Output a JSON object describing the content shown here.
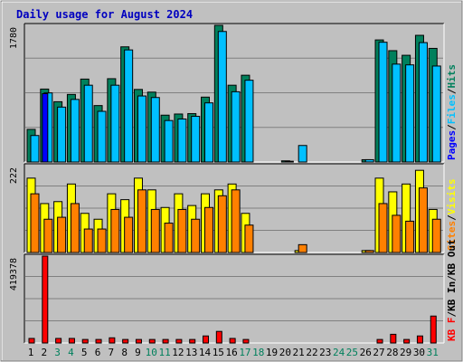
{
  "chart_data": {
    "type": "bar",
    "title": "Daily usage for August 2024",
    "categories": [
      "1",
      "2",
      "3",
      "4",
      "5",
      "6",
      "7",
      "8",
      "9",
      "10",
      "11",
      "12",
      "13",
      "14",
      "15",
      "16",
      "17",
      "18",
      "19",
      "20",
      "21",
      "22",
      "23",
      "24",
      "25",
      "26",
      "27",
      "28",
      "29",
      "30",
      "31"
    ],
    "weekend_days": [
      "3",
      "4",
      "10",
      "11",
      "17",
      "18",
      "24",
      "25",
      "31"
    ],
    "panels": [
      {
        "name": "hits-files-pages",
        "ymax": 1780,
        "ymax_label": "1780",
        "legend": [
          "Pages",
          "Files",
          "Hits"
        ],
        "series": [
          {
            "name": "Hits",
            "color": "#00805c",
            "values": [
              425,
              950,
              785,
              880,
              1080,
              735,
              1085,
              1500,
              945,
              910,
              610,
              625,
              630,
              845,
              1780,
              1000,
              1130,
              0,
              0,
              15,
              0,
              0,
              0,
              0,
              0,
              30,
              1590,
              1450,
              1390,
              1650,
              1480
            ]
          },
          {
            "name": "Files",
            "color": "#00c0ff",
            "values": [
              345,
              900,
              715,
              815,
              1000,
              660,
              1000,
              1460,
              860,
              840,
              540,
              560,
              595,
              770,
              1700,
              915,
              1065,
              0,
              0,
              10,
              215,
              0,
              0,
              0,
              0,
              30,
              1560,
              1275,
              1265,
              1555,
              1250
            ]
          },
          {
            "name": "Pages",
            "color": "#0000ff",
            "values": [
              0,
              890,
              0,
              0,
              0,
              0,
              0,
              0,
              0,
              0,
              0,
              0,
              0,
              0,
              0,
              0,
              0,
              0,
              0,
              0,
              0,
              0,
              0,
              0,
              0,
              0,
              0,
              0,
              0,
              0,
              0
            ]
          }
        ]
      },
      {
        "name": "visits-sites",
        "ymax": 222,
        "ymax_label": "222",
        "legend": [
          "Sites",
          "Visits"
        ],
        "series": [
          {
            "name": "Visits",
            "color": "#ffff00",
            "values": [
              190,
              125,
              130,
              175,
              100,
              85,
              150,
              135,
              190,
              160,
              115,
              150,
              120,
              150,
              160,
              175,
              100,
              0,
              0,
              0,
              5,
              0,
              0,
              0,
              0,
              5,
              190,
              155,
              175,
              210,
              110
            ]
          },
          {
            "name": "Sites",
            "color": "#ff8000",
            "values": [
              150,
              85,
              90,
              125,
              60,
              60,
              110,
              90,
              160,
              110,
              75,
              110,
              85,
              115,
              145,
              160,
              70,
              0,
              0,
              0,
              20,
              0,
              0,
              0,
              0,
              5,
              125,
              95,
              80,
              165,
              85
            ]
          }
        ]
      },
      {
        "name": "kbytes",
        "ymax": 419378,
        "ymax_label": "419378",
        "legend": [
          "KB F",
          "KB In",
          "KB Out"
        ],
        "series": [
          {
            "name": "KB F",
            "color": "#ff0000",
            "values": [
              22000,
              419378,
              22000,
              22000,
              17000,
              17000,
              25000,
              17000,
              17000,
              17000,
              17000,
              17000,
              17000,
              34000,
              56000,
              22000,
              17000,
              0,
              0,
              0,
              0,
              0,
              0,
              0,
              0,
              0,
              17000,
              42000,
              17000,
              34000,
              130000
            ]
          }
        ]
      }
    ],
    "legend_separator": "/",
    "colors": {
      "background": "#ffffff",
      "outer_panel": "#c0c0c0",
      "plot_area": "#c0c0c0",
      "grid": "#808080",
      "title": "#0000c0",
      "weekday_label": "#000000",
      "weekend_label": "#00805c"
    }
  }
}
